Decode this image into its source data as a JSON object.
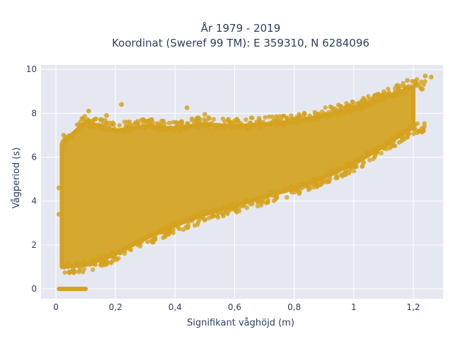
{
  "chart_data": {
    "type": "scatter",
    "title_line1": "År 1979 - 2019",
    "title_line2": "Koordinat (Sweref 99 TM): E 359310, N 6284096",
    "xlabel": "Signifikant våghöjd (m)",
    "ylabel": "Vågperiod (s)",
    "xlim": [
      -0.05,
      1.3
    ],
    "ylim": [
      -0.45,
      10.2
    ],
    "x_ticks": [
      0,
      0.2,
      0.4,
      0.6,
      0.8,
      1,
      1.2
    ],
    "x_tick_labels": [
      "0",
      "0,2",
      "0,4",
      "0,6",
      "0,8",
      "1",
      "1,2"
    ],
    "y_ticks": [
      0,
      2,
      4,
      6,
      8,
      10
    ],
    "y_tick_labels": [
      "0",
      "2",
      "4",
      "6",
      "8",
      "10"
    ],
    "grid": true,
    "marker_color": "#d4a21f",
    "plot_background": "#e5e8f1",
    "density_bands": [
      {
        "x": 0.02,
        "y_min": 1.0,
        "y_max": 6.6
      },
      {
        "x": 0.1,
        "y_min": 1.1,
        "y_max": 7.6
      },
      {
        "x": 0.2,
        "y_min": 1.6,
        "y_max": 7.2
      },
      {
        "x": 0.3,
        "y_min": 2.3,
        "y_max": 7.4
      },
      {
        "x": 0.4,
        "y_min": 2.9,
        "y_max": 7.3
      },
      {
        "x": 0.5,
        "y_min": 3.4,
        "y_max": 7.5
      },
      {
        "x": 0.6,
        "y_min": 3.8,
        "y_max": 7.4
      },
      {
        "x": 0.7,
        "y_min": 4.2,
        "y_max": 7.5
      },
      {
        "x": 0.8,
        "y_min": 4.6,
        "y_max": 7.6
      },
      {
        "x": 0.9,
        "y_min": 5.1,
        "y_max": 7.9
      },
      {
        "x": 1.0,
        "y_min": 5.7,
        "y_max": 8.2
      },
      {
        "x": 1.1,
        "y_min": 6.5,
        "y_max": 8.7
      },
      {
        "x": 1.2,
        "y_min": 7.4,
        "y_max": 9.2
      }
    ],
    "zero_period_points": {
      "x_min": 0.01,
      "x_max": 0.1,
      "y": 0
    },
    "outlier_points": [
      {
        "x": 0.22,
        "y": 8.4
      },
      {
        "x": 0.44,
        "y": 8.25
      },
      {
        "x": 0.11,
        "y": 8.1
      },
      {
        "x": 0.17,
        "y": 7.9
      },
      {
        "x": 0.5,
        "y": 7.95
      },
      {
        "x": 1.18,
        "y": 9.5
      },
      {
        "x": 1.24,
        "y": 9.7
      },
      {
        "x": 1.26,
        "y": 9.65
      },
      {
        "x": 1.23,
        "y": 9.1
      },
      {
        "x": 1.07,
        "y": 8.8
      },
      {
        "x": 0.01,
        "y": 4.6
      },
      {
        "x": 0.01,
        "y": 3.4
      }
    ]
  }
}
